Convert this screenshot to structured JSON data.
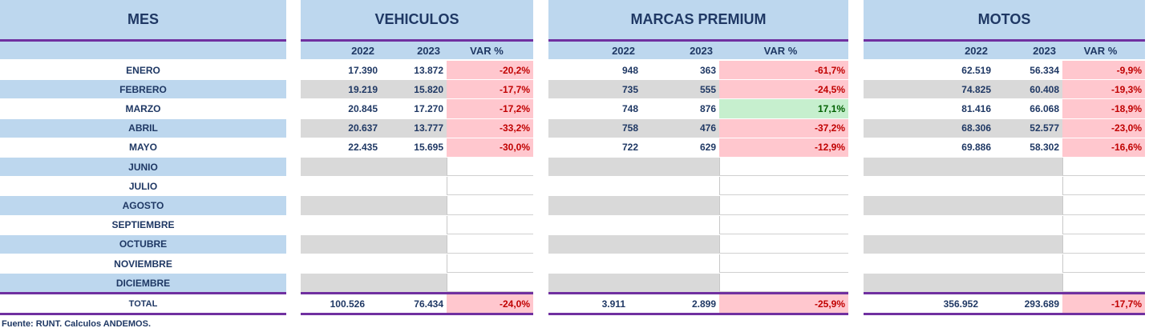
{
  "headers": {
    "mes": "MES",
    "sections": [
      "VEHICULOS",
      "MARCAS PREMIUM",
      "MOTOS"
    ]
  },
  "subheaders": [
    "2022",
    "2023",
    "VAR %"
  ],
  "months": [
    {
      "name": "ENERO",
      "vehiculos": [
        "17.390",
        "13.872",
        "-20,2%"
      ],
      "premium": [
        "948",
        "363",
        "-61,7%"
      ],
      "motos": [
        "62.519",
        "56.334",
        "-9,9%"
      ]
    },
    {
      "name": "FEBRERO",
      "vehiculos": [
        "19.219",
        "15.820",
        "-17,7%"
      ],
      "premium": [
        "735",
        "555",
        "-24,5%"
      ],
      "motos": [
        "74.825",
        "60.408",
        "-19,3%"
      ]
    },
    {
      "name": "MARZO",
      "vehiculos": [
        "20.845",
        "17.270",
        "-17,2%"
      ],
      "premium": [
        "748",
        "876",
        "17,1%"
      ],
      "motos": [
        "81.416",
        "66.068",
        "-18,9%"
      ]
    },
    {
      "name": "ABRIL",
      "vehiculos": [
        "20.637",
        "13.777",
        "-33,2%"
      ],
      "premium": [
        "758",
        "476",
        "-37,2%"
      ],
      "motos": [
        "68.306",
        "52.577",
        "-23,0%"
      ]
    },
    {
      "name": "MAYO",
      "vehiculos": [
        "22.435",
        "15.695",
        "-30,0%"
      ],
      "premium": [
        "722",
        "629",
        "-12,9%"
      ],
      "motos": [
        "69.886",
        "58.302",
        "-16,6%"
      ]
    },
    {
      "name": "JUNIO"
    },
    {
      "name": "JULIO"
    },
    {
      "name": "AGOSTO"
    },
    {
      "name": "SEPTIEMBRE"
    },
    {
      "name": "OCTUBRE"
    },
    {
      "name": "NOVIEMBRE"
    },
    {
      "name": "DICIEMBRE"
    }
  ],
  "total": {
    "name": "TOTAL",
    "vehiculos": [
      "100.526",
      "76.434",
      "-24,0%"
    ],
    "premium": [
      "3.911",
      "2.899",
      "-25,9%"
    ],
    "motos": [
      "356.952",
      "293.689",
      "-17,7%"
    ]
  },
  "footer": "Fuente: RUNT. Calculos ANDEMOS.",
  "colors": {
    "header_bg": "#bdd7ee",
    "rule": "#7030a0",
    "negative_bg": "#ffc7ce",
    "negative_text": "#c00000",
    "positive_bg": "#c6efce",
    "positive_text": "#006100",
    "stripe": "#d9d9d9"
  }
}
